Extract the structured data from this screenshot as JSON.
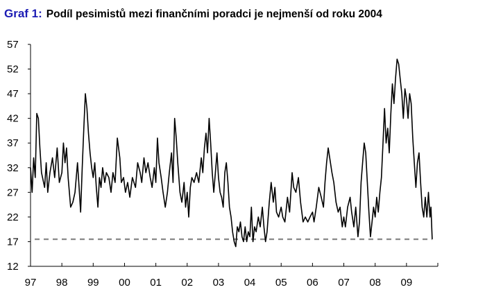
{
  "header": {
    "graph_label": "Graf 1:",
    "title": "Podíl pesimistů mezi finančními poradci je nejmenší od roku 2004"
  },
  "chart_data": {
    "type": "line",
    "title": "Podíl pesimistů mezi finančními poradci je nejmenší od roku 2004",
    "xlabel": "",
    "ylabel": "",
    "x_tick_labels": [
      "97",
      "98",
      "99",
      "00",
      "01",
      "02",
      "03",
      "04",
      "05",
      "06",
      "07",
      "08",
      "09"
    ],
    "x_ticks": [
      1997,
      1998,
      1999,
      2000,
      2001,
      2002,
      2003,
      2004,
      2005,
      2006,
      2007,
      2008,
      2009
    ],
    "xlim": [
      1997,
      2010
    ],
    "y_ticks": [
      12,
      17,
      22,
      27,
      32,
      37,
      42,
      47,
      52,
      57
    ],
    "ylim": [
      12,
      57
    ],
    "grid": false,
    "colors": {
      "series": "#000000",
      "reference": "#8c8c8c"
    },
    "reference_line": {
      "value": 17.5,
      "style": "dashed"
    },
    "series": [
      {
        "points": [
          [
            1997.0,
            32
          ],
          [
            1997.05,
            27
          ],
          [
            1997.1,
            34
          ],
          [
            1997.15,
            30
          ],
          [
            1997.2,
            43
          ],
          [
            1997.25,
            42
          ],
          [
            1997.3,
            36
          ],
          [
            1997.35,
            31
          ],
          [
            1997.45,
            28
          ],
          [
            1997.5,
            33
          ],
          [
            1997.55,
            27
          ],
          [
            1997.62,
            31
          ],
          [
            1997.7,
            34
          ],
          [
            1997.77,
            30
          ],
          [
            1997.85,
            36
          ],
          [
            1997.92,
            29
          ],
          [
            1998.0,
            31
          ],
          [
            1998.05,
            37
          ],
          [
            1998.1,
            33
          ],
          [
            1998.15,
            36
          ],
          [
            1998.2,
            30
          ],
          [
            1998.28,
            24
          ],
          [
            1998.35,
            25
          ],
          [
            1998.42,
            27
          ],
          [
            1998.5,
            33
          ],
          [
            1998.55,
            28
          ],
          [
            1998.6,
            23
          ],
          [
            1998.65,
            32
          ],
          [
            1998.7,
            40
          ],
          [
            1998.75,
            47
          ],
          [
            1998.8,
            44
          ],
          [
            1998.85,
            39
          ],
          [
            1998.9,
            35
          ],
          [
            1998.95,
            32
          ],
          [
            1999.0,
            30
          ],
          [
            1999.05,
            33
          ],
          [
            1999.1,
            28
          ],
          [
            1999.15,
            24
          ],
          [
            1999.2,
            30
          ],
          [
            1999.25,
            28
          ],
          [
            1999.3,
            32
          ],
          [
            1999.37,
            29
          ],
          [
            1999.42,
            31
          ],
          [
            1999.5,
            30
          ],
          [
            1999.57,
            27
          ],
          [
            1999.63,
            31
          ],
          [
            1999.7,
            29
          ],
          [
            1999.77,
            38
          ],
          [
            1999.85,
            34
          ],
          [
            1999.9,
            29
          ],
          [
            1999.97,
            30
          ],
          [
            2000.03,
            27
          ],
          [
            2000.1,
            29
          ],
          [
            2000.17,
            26
          ],
          [
            2000.25,
            30
          ],
          [
            2000.35,
            28
          ],
          [
            2000.42,
            33
          ],
          [
            2000.5,
            31
          ],
          [
            2000.55,
            29
          ],
          [
            2000.62,
            34
          ],
          [
            2000.68,
            31
          ],
          [
            2000.75,
            33
          ],
          [
            2000.82,
            30
          ],
          [
            2000.88,
            28
          ],
          [
            2000.95,
            32
          ],
          [
            2001.0,
            29
          ],
          [
            2001.05,
            38
          ],
          [
            2001.1,
            33
          ],
          [
            2001.17,
            30
          ],
          [
            2001.23,
            27
          ],
          [
            2001.3,
            24
          ],
          [
            2001.37,
            27
          ],
          [
            2001.43,
            31
          ],
          [
            2001.5,
            35
          ],
          [
            2001.55,
            29
          ],
          [
            2001.6,
            42
          ],
          [
            2001.65,
            38
          ],
          [
            2001.7,
            33
          ],
          [
            2001.77,
            27
          ],
          [
            2001.83,
            25
          ],
          [
            2001.9,
            29
          ],
          [
            2001.95,
            24
          ],
          [
            2002.0,
            27
          ],
          [
            2002.05,
            22
          ],
          [
            2002.1,
            28
          ],
          [
            2002.15,
            30
          ],
          [
            2002.22,
            29
          ],
          [
            2002.3,
            31
          ],
          [
            2002.37,
            29
          ],
          [
            2002.45,
            34
          ],
          [
            2002.5,
            31
          ],
          [
            2002.55,
            36
          ],
          [
            2002.6,
            39
          ],
          [
            2002.65,
            35
          ],
          [
            2002.7,
            42
          ],
          [
            2002.75,
            37
          ],
          [
            2002.8,
            31
          ],
          [
            2002.85,
            27
          ],
          [
            2002.9,
            31
          ],
          [
            2002.95,
            35
          ],
          [
            2003.0,
            30
          ],
          [
            2003.05,
            27
          ],
          [
            2003.1,
            26
          ],
          [
            2003.15,
            24
          ],
          [
            2003.2,
            31
          ],
          [
            2003.25,
            33
          ],
          [
            2003.3,
            29
          ],
          [
            2003.35,
            24
          ],
          [
            2003.4,
            22
          ],
          [
            2003.45,
            19
          ],
          [
            2003.5,
            17
          ],
          [
            2003.55,
            16
          ],
          [
            2003.6,
            20
          ],
          [
            2003.65,
            19
          ],
          [
            2003.7,
            21
          ],
          [
            2003.75,
            18
          ],
          [
            2003.8,
            17
          ],
          [
            2003.85,
            20
          ],
          [
            2003.9,
            17
          ],
          [
            2003.95,
            19
          ],
          [
            2004.0,
            18
          ],
          [
            2004.05,
            24
          ],
          [
            2004.1,
            17
          ],
          [
            2004.15,
            20
          ],
          [
            2004.2,
            19
          ],
          [
            2004.27,
            22
          ],
          [
            2004.33,
            20
          ],
          [
            2004.4,
            24
          ],
          [
            2004.45,
            20
          ],
          [
            2004.5,
            17
          ],
          [
            2004.55,
            19
          ],
          [
            2004.62,
            25
          ],
          [
            2004.68,
            29
          ],
          [
            2004.75,
            25
          ],
          [
            2004.8,
            28
          ],
          [
            2004.85,
            23
          ],
          [
            2004.92,
            22
          ],
          [
            2005.0,
            24
          ],
          [
            2005.05,
            22
          ],
          [
            2005.12,
            21
          ],
          [
            2005.2,
            26
          ],
          [
            2005.27,
            23
          ],
          [
            2005.35,
            31
          ],
          [
            2005.4,
            28
          ],
          [
            2005.47,
            27
          ],
          [
            2005.55,
            30
          ],
          [
            2005.62,
            25
          ],
          [
            2005.7,
            21
          ],
          [
            2005.77,
            22
          ],
          [
            2005.85,
            21
          ],
          [
            2005.92,
            22
          ],
          [
            2006.0,
            23
          ],
          [
            2006.05,
            21
          ],
          [
            2006.12,
            24
          ],
          [
            2006.2,
            28
          ],
          [
            2006.28,
            26
          ],
          [
            2006.35,
            24
          ],
          [
            2006.4,
            29
          ],
          [
            2006.45,
            33
          ],
          [
            2006.5,
            36
          ],
          [
            2006.55,
            34
          ],
          [
            2006.62,
            31
          ],
          [
            2006.68,
            29
          ],
          [
            2006.75,
            25
          ],
          [
            2006.82,
            23
          ],
          [
            2006.88,
            24
          ],
          [
            2006.95,
            20
          ],
          [
            2007.0,
            22
          ],
          [
            2007.05,
            20
          ],
          [
            2007.12,
            24
          ],
          [
            2007.2,
            26
          ],
          [
            2007.25,
            23
          ],
          [
            2007.32,
            20
          ],
          [
            2007.38,
            24
          ],
          [
            2007.45,
            18
          ],
          [
            2007.5,
            21
          ],
          [
            2007.55,
            29
          ],
          [
            2007.6,
            33
          ],
          [
            2007.65,
            37
          ],
          [
            2007.7,
            35
          ],
          [
            2007.75,
            29
          ],
          [
            2007.8,
            23
          ],
          [
            2007.85,
            18
          ],
          [
            2007.9,
            21
          ],
          [
            2007.95,
            24
          ],
          [
            2008.0,
            22
          ],
          [
            2008.05,
            26
          ],
          [
            2008.1,
            23
          ],
          [
            2008.15,
            27
          ],
          [
            2008.2,
            30
          ],
          [
            2008.25,
            37
          ],
          [
            2008.3,
            44
          ],
          [
            2008.35,
            37
          ],
          [
            2008.4,
            40
          ],
          [
            2008.45,
            35
          ],
          [
            2008.5,
            43
          ],
          [
            2008.55,
            49
          ],
          [
            2008.6,
            45
          ],
          [
            2008.65,
            50
          ],
          [
            2008.7,
            54
          ],
          [
            2008.75,
            53
          ],
          [
            2008.8,
            50
          ],
          [
            2008.85,
            47
          ],
          [
            2008.9,
            42
          ],
          [
            2008.95,
            48
          ],
          [
            2009.0,
            46
          ],
          [
            2009.05,
            42
          ],
          [
            2009.1,
            47
          ],
          [
            2009.15,
            45
          ],
          [
            2009.2,
            38
          ],
          [
            2009.25,
            33
          ],
          [
            2009.3,
            28
          ],
          [
            2009.35,
            33
          ],
          [
            2009.4,
            35
          ],
          [
            2009.45,
            29
          ],
          [
            2009.5,
            24
          ],
          [
            2009.55,
            22
          ],
          [
            2009.6,
            26
          ],
          [
            2009.65,
            22
          ],
          [
            2009.7,
            27
          ],
          [
            2009.75,
            22
          ],
          [
            2009.78,
            24
          ],
          [
            2009.82,
            17.5
          ]
        ]
      }
    ]
  }
}
